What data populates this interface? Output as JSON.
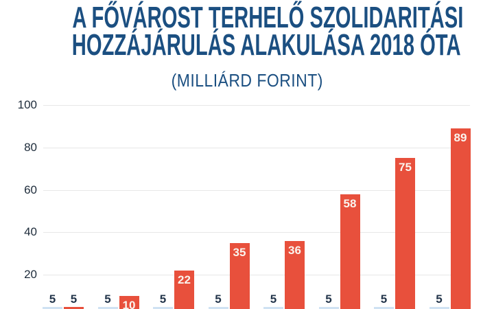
{
  "header": {
    "title_line1": "A FŐVÁROST TERHELŐ SZOLIDARITÁSI",
    "title_line2": "HOZZÁJÁRULÁS ALAKULÁSA 2018 ÓTA",
    "subtitle": "(MILLIÁRD FORINT)"
  },
  "chart_data": {
    "type": "bar",
    "title": "A FŐVÁROST TERHELŐ SZOLIDARITÁSI HOZZÁJÁRULÁS ALAKULÁSA 2018 ÓTA",
    "subtitle": "(MILLIÁRD FORINT)",
    "unit": "milliárd forint",
    "ylim": [
      0,
      100
    ],
    "yticks": [
      100,
      80,
      60,
      40,
      20
    ],
    "grid": true,
    "legend": "none",
    "groups": 8,
    "series": [
      {
        "id": "baseline-bars",
        "values": [
          5,
          5,
          5,
          5,
          5,
          5,
          5,
          5
        ]
      },
      {
        "id": "contribution-bars",
        "values": [
          5,
          10,
          22,
          35,
          36,
          58,
          75,
          89
        ]
      }
    ],
    "bar_labels_small_series": [
      "5",
      "5",
      "5",
      "5",
      "5",
      "5",
      "5",
      "5"
    ],
    "bar_labels_main_series": [
      "5",
      "10",
      "22",
      "35",
      "36",
      "58",
      "75",
      "89"
    ]
  },
  "colors": {
    "background": "#ffffff",
    "title": "#1b4f81",
    "bar_small": "#cfe2f3",
    "bar_main": "#e8503c",
    "bar_label_inside": "#faf4ee",
    "bar_label_outside": "#22344a",
    "axis_label": "#1d2b3a",
    "gridline": "#e7e7e7"
  }
}
